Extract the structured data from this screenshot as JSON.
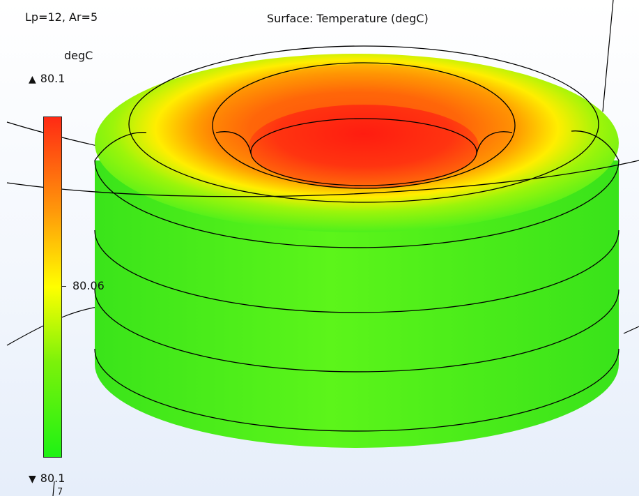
{
  "header": {
    "params": "Lp=12, Ar=5",
    "plot_title": "Surface: Temperature (degC)"
  },
  "legend": {
    "unit": "degC",
    "max_label": "80.1",
    "mid_label": "80.06",
    "min_label": "80.1",
    "max_arrow": "▲",
    "min_arrow": "▼",
    "partial_label": "7",
    "colors": {
      "top": "#ff2a14",
      "upper": "#ff9a0a",
      "middle": "#ffff00",
      "lower": "#7cf20a",
      "bottom": "#1ef214"
    }
  },
  "model": {
    "hot_color": "#ff1e10",
    "warm_color": "#ffa000",
    "mid_color": "#ffee00",
    "cool_color": "#33ee22",
    "edge_color": "#000000"
  }
}
